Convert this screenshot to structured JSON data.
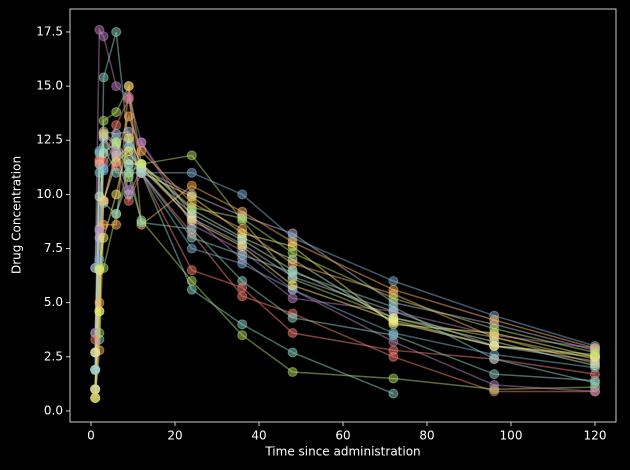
{
  "chart_data": {
    "type": "line",
    "xlabel": "Time since administration",
    "ylabel": "Drug Concentration",
    "x": [
      1,
      2,
      3,
      6,
      9,
      12,
      24,
      36,
      48,
      72,
      96,
      120
    ],
    "series": [
      {
        "color": "#fa8174",
        "values": [
          2.7,
          11.6,
          11.5,
          13.2,
          14.4,
          11.0,
          8.2,
          5.3,
          4.5,
          2.5,
          0.9,
          0.9
        ]
      },
      {
        "color": "#bc82bd",
        "values": [
          6.6,
          17.6,
          17.3,
          15.0,
          14.5,
          12.4,
          9.0,
          7.0,
          5.2,
          4.6,
          3.5,
          2.9
        ]
      },
      {
        "color": "#8dd3c7",
        "values": [
          1.9,
          3.3,
          15.4,
          17.5,
          12.2,
          11.0,
          5.6,
          4.0,
          2.7,
          0.8,
          null,
          null
        ]
      },
      {
        "color": "#b3de69",
        "values": [
          0.6,
          4.6,
          13.4,
          13.8,
          15.0,
          11.4,
          11.8,
          8.8,
          6.1,
          4.3,
          3.4,
          2.4
        ]
      },
      {
        "color": "#bfbbd9",
        "values": [
          1.0,
          8.4,
          12.9,
          12.8,
          12.9,
          11.2,
          10.0,
          9.0,
          8.2,
          5.0,
          4.0,
          2.8
        ]
      },
      {
        "color": "#81b1d2",
        "values": [
          3.6,
          12.0,
          11.1,
          11.7,
          12.2,
          11.0,
          11.0,
          10.0,
          8.0,
          6.0,
          4.4,
          3.0
        ]
      },
      {
        "color": "#fdb462",
        "values": [
          0.6,
          2.8,
          8.6,
          8.6,
          15.0,
          8.6,
          10.4,
          9.2,
          7.8,
          5.6,
          4.2,
          2.9
        ]
      },
      {
        "color": "#b3de69",
        "values": [
          1.0,
          6.6,
          6.6,
          9.1,
          10.8,
          8.8,
          6.0,
          3.5,
          1.8,
          1.5,
          1.0,
          1.1
        ]
      },
      {
        "color": "#bc82bd",
        "values": [
          3.6,
          8.3,
          9.7,
          12.0,
          10.2,
          12.4,
          8.6,
          7.4,
          5.6,
          3.2,
          1.2,
          0.9
        ]
      },
      {
        "color": "#ccebc4",
        "values": [
          1.9,
          11.4,
          12.7,
          12.3,
          11.4,
          11.4,
          9.3,
          8.0,
          7.0,
          4.1,
          3.0,
          2.6
        ]
      },
      {
        "color": "#ffed6f",
        "values": [
          2.7,
          4.6,
          9.7,
          11.5,
          12.0,
          11.0,
          9.9,
          8.2,
          7.6,
          4.0,
          3.6,
          2.5
        ]
      },
      {
        "color": "#8dd3c7",
        "values": [
          6.6,
          11.9,
          9.6,
          9.1,
          11.3,
          8.7,
          8.4,
          6.0,
          4.3,
          3.5,
          1.7,
          1.4
        ]
      },
      {
        "color": "#fa8174",
        "values": [
          3.3,
          11.5,
          12.8,
          11.3,
          9.7,
          11.0,
          6.5,
          5.7,
          3.6,
          2.8,
          2.4,
          1.7
        ]
      },
      {
        "color": "#81b1d2",
        "values": [
          1.0,
          7.0,
          11.2,
          12.6,
          12.5,
          11.0,
          7.5,
          6.8,
          5.6,
          3.6,
          2.6,
          2.0
        ]
      },
      {
        "color": "#fdb462",
        "values": [
          0.6,
          5.0,
          9.7,
          11.8,
          13.6,
          12.0,
          9.6,
          8.4,
          6.8,
          5.4,
          3.4,
          2.2
        ]
      },
      {
        "color": "#bfbbd9",
        "values": [
          1.9,
          8.0,
          12.6,
          11.9,
          10.0,
          11.2,
          8.9,
          7.7,
          6.2,
          4.6,
          3.0,
          2.3
        ]
      },
      {
        "color": "#ccebc4",
        "values": [
          2.7,
          9.9,
          11.9,
          12.4,
          11.6,
          11.2,
          9.1,
          7.9,
          6.5,
          4.3,
          3.2,
          2.1
        ]
      },
      {
        "color": "#ffed6f",
        "values": [
          1.0,
          6.5,
          8.0,
          10.0,
          12.6,
          11.4,
          8.8,
          7.6,
          5.8,
          4.2,
          3.0,
          2.5
        ]
      },
      {
        "color": "#b3de69",
        "values": [
          0.6,
          3.6,
          12.8,
          12.4,
          11.0,
          11.4,
          9.4,
          8.9,
          7.3,
          5.2,
          3.8,
          2.7
        ]
      },
      {
        "color": "#8dd3c7",
        "values": [
          1.9,
          11.0,
          12.2,
          11.0,
          11.0,
          11.0,
          8.0,
          7.2,
          6.4,
          4.8,
          2.4,
          1.3
        ]
      }
    ],
    "xlim": [
      -5,
      125
    ],
    "ylim": [
      -0.51,
      18.56
    ],
    "xticks": [
      0,
      20,
      40,
      60,
      80,
      100,
      120
    ],
    "yticks": [
      {
        "value": 0,
        "label": "0.0"
      },
      {
        "value": 2.5,
        "label": "2.5"
      },
      {
        "value": 5,
        "label": "5.0"
      },
      {
        "value": 7.5,
        "label": "7.5"
      },
      {
        "value": 10,
        "label": "10.0"
      },
      {
        "value": 12.5,
        "label": "12.5"
      },
      {
        "value": 15,
        "label": "15.0"
      },
      {
        "value": 17.5,
        "label": "17.5"
      }
    ],
    "marker": "o"
  }
}
